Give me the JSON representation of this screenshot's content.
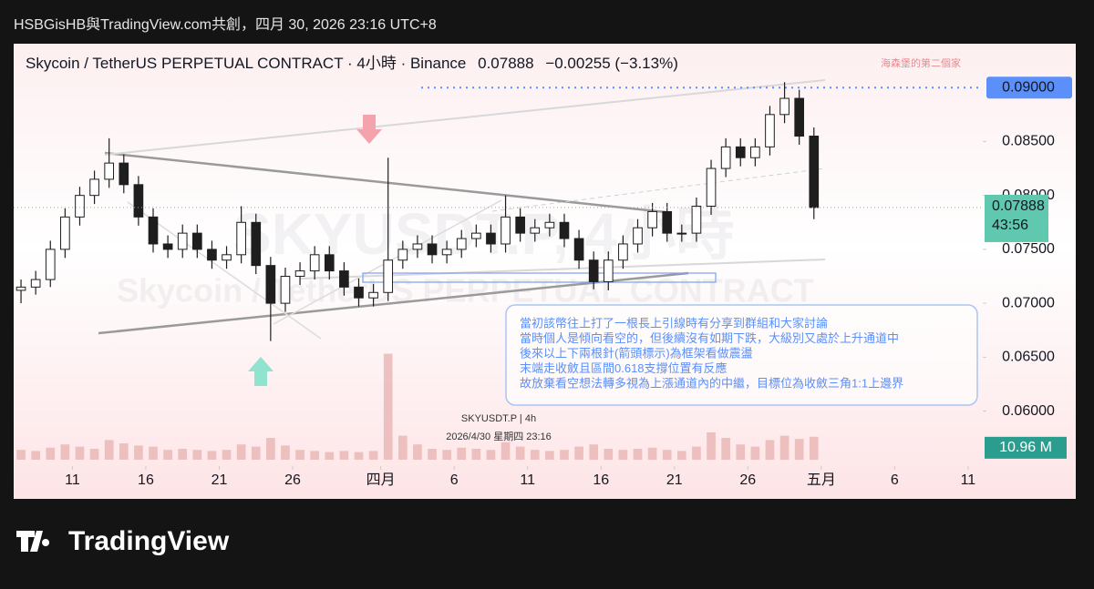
{
  "header": "HSBGisHB與TradingView.com共創，四月 30, 2026 23:16 UTC+8",
  "footer": "TradingView",
  "chart_data": {
    "type": "candlestick",
    "title": "Skycoin / TetherUS PERPETUAL CONTRACT · 4小時 · Binance",
    "last_price_text": "0.07888",
    "change_text": "−0.00255 (−3.13%)",
    "corner_note": "海森堡的第二個家",
    "watermark": [
      "SKYUSDT.P, 4小時",
      "Skycoin / TetherUS PERPETUAL CONTRACT"
    ],
    "symbol_label": "SKYUSDT.P | 4h",
    "date_label": "2026/4/30 星期四 23:16",
    "countdown": "43:56",
    "annotation": [
      "當初該幣往上打了一根長上引線時有分享到群組和大家討論",
      "當時個人是傾向看空的，但後續沒有如期下跌，大級別又處於上升通道中",
      "後來以上下兩根針(箭頭標示)為框架看做震盪",
      "末端走收斂且區間0.618支撐位置有反應",
      "故放棄看空想法轉多視為上漲通道內的中繼，目標位為收斂三角1:1上邊界"
    ],
    "up_color": "#ffffff",
    "down_color": "#1e1e1e",
    "volume_color": "#e8b4b4",
    "x": [
      "2026-03-07",
      "2026-03-08",
      "2026-03-09",
      "2026-03-10",
      "2026-03-11",
      "2026-03-12",
      "2026-03-13",
      "2026-03-14",
      "2026-03-15",
      "2026-03-16",
      "2026-03-17",
      "2026-03-18",
      "2026-03-19",
      "2026-03-20",
      "2026-03-21",
      "2026-03-22",
      "2026-03-23",
      "2026-03-24",
      "2026-03-25",
      "2026-03-26",
      "2026-03-27",
      "2026-03-28",
      "2026-03-29",
      "2026-03-30",
      "2026-03-31",
      "2026-04-01",
      "2026-04-02",
      "2026-04-03",
      "2026-04-04",
      "2026-04-05",
      "2026-04-06",
      "2026-04-07",
      "2026-04-08",
      "2026-04-09",
      "2026-04-10",
      "2026-04-11",
      "2026-04-12",
      "2026-04-13",
      "2026-04-14",
      "2026-04-15",
      "2026-04-16",
      "2026-04-17",
      "2026-04-18",
      "2026-04-19",
      "2026-04-20",
      "2026-04-21",
      "2026-04-22",
      "2026-04-23",
      "2026-04-24",
      "2026-04-25",
      "2026-04-26",
      "2026-04-27",
      "2026-04-28",
      "2026-04-29",
      "2026-04-30"
    ],
    "open": [
      0.0712,
      0.0715,
      0.0722,
      0.075,
      0.078,
      0.08,
      0.0815,
      0.083,
      0.081,
      0.078,
      0.0755,
      0.075,
      0.0765,
      0.075,
      0.074,
      0.0745,
      0.0775,
      0.0735,
      0.07,
      0.0725,
      0.073,
      0.0745,
      0.073,
      0.0715,
      0.0705,
      0.071,
      0.074,
      0.075,
      0.0755,
      0.0745,
      0.075,
      0.076,
      0.0765,
      0.0755,
      0.078,
      0.0765,
      0.077,
      0.0775,
      0.076,
      0.074,
      0.072,
      0.074,
      0.0755,
      0.077,
      0.0785,
      0.0765,
      0.0765,
      0.079,
      0.0825,
      0.0845,
      0.0835,
      0.0845,
      0.0875,
      0.089,
      0.0855
    ],
    "high": [
      0.0722,
      0.073,
      0.0758,
      0.0788,
      0.0808,
      0.0823,
      0.0853,
      0.0838,
      0.0818,
      0.0788,
      0.0763,
      0.0773,
      0.0773,
      0.0758,
      0.0753,
      0.079,
      0.0783,
      0.0743,
      0.0733,
      0.0738,
      0.0753,
      0.0753,
      0.0738,
      0.0723,
      0.0718,
      0.0835,
      0.0758,
      0.0763,
      0.0763,
      0.0758,
      0.0768,
      0.0773,
      0.0773,
      0.08,
      0.0788,
      0.0778,
      0.0783,
      0.0783,
      0.0768,
      0.0748,
      0.0748,
      0.0763,
      0.0778,
      0.0793,
      0.0793,
      0.0773,
      0.0798,
      0.0833,
      0.0853,
      0.0853,
      0.0853,
      0.0883,
      0.0905,
      0.0898,
      0.0863
    ],
    "low": [
      0.07,
      0.0708,
      0.0715,
      0.0742,
      0.0772,
      0.0792,
      0.0807,
      0.0802,
      0.0772,
      0.0747,
      0.0742,
      0.0742,
      0.0742,
      0.0732,
      0.0732,
      0.0737,
      0.0727,
      0.0665,
      0.0692,
      0.0717,
      0.0722,
      0.0722,
      0.0707,
      0.0697,
      0.0697,
      0.0702,
      0.0732,
      0.0742,
      0.0737,
      0.0737,
      0.0742,
      0.0752,
      0.0747,
      0.0747,
      0.0757,
      0.0757,
      0.0762,
      0.0752,
      0.0732,
      0.0713,
      0.0712,
      0.0732,
      0.0747,
      0.0762,
      0.0757,
      0.0757,
      0.0757,
      0.0782,
      0.0817,
      0.0827,
      0.0827,
      0.0837,
      0.0867,
      0.0847,
      0.0778
    ],
    "close": [
      0.0715,
      0.0722,
      0.075,
      0.078,
      0.08,
      0.0815,
      0.083,
      0.081,
      0.078,
      0.0755,
      0.075,
      0.0765,
      0.075,
      0.074,
      0.0745,
      0.0775,
      0.0735,
      0.07,
      0.0725,
      0.073,
      0.0745,
      0.073,
      0.0715,
      0.0705,
      0.071,
      0.074,
      0.075,
      0.0755,
      0.0745,
      0.075,
      0.076,
      0.0765,
      0.0755,
      0.078,
      0.0765,
      0.077,
      0.0775,
      0.076,
      0.074,
      0.072,
      0.074,
      0.0755,
      0.077,
      0.0785,
      0.0765,
      0.0765,
      0.079,
      0.0825,
      0.0845,
      0.0835,
      0.0845,
      0.0875,
      0.089,
      0.0855,
      0.07888
    ],
    "volume": [
      9,
      8,
      11,
      14,
      12,
      10,
      18,
      15,
      13,
      12,
      9,
      10,
      9,
      8,
      9,
      14,
      12,
      20,
      13,
      9,
      8,
      7,
      8,
      7,
      8,
      97,
      22,
      14,
      10,
      9,
      11,
      10,
      9,
      16,
      12,
      9,
      8,
      9,
      12,
      14,
      10,
      9,
      10,
      11,
      9,
      8,
      12,
      25,
      20,
      14,
      12,
      18,
      22,
      19,
      21
    ],
    "volume_ylim": [
      0,
      100
    ],
    "current_volume": {
      "value": 10.96,
      "label": "10.96 M"
    },
    "xlim": [
      "2026-03-07",
      "2026-05-12"
    ],
    "xticks": [
      {
        "value": "2026-03-11",
        "label": "11"
      },
      {
        "value": "2026-03-16",
        "label": "16"
      },
      {
        "value": "2026-03-21",
        "label": "21"
      },
      {
        "value": "2026-03-26",
        "label": "26"
      },
      {
        "value": "2026-04-01",
        "label": "四月"
      },
      {
        "value": "2026-04-06",
        "label": "6"
      },
      {
        "value": "2026-04-11",
        "label": "11"
      },
      {
        "value": "2026-04-16",
        "label": "16"
      },
      {
        "value": "2026-04-21",
        "label": "21"
      },
      {
        "value": "2026-04-26",
        "label": "26"
      },
      {
        "value": "2026-05-01",
        "label": "五月"
      },
      {
        "value": "2026-05-06",
        "label": "6"
      },
      {
        "value": "2026-05-11",
        "label": "11"
      }
    ],
    "ylim": [
      0.0549,
      0.0939
    ],
    "yticks": [
      {
        "value": 0.085,
        "label": "0.08500"
      },
      {
        "value": 0.08,
        "label": "0.08000"
      },
      {
        "value": 0.075,
        "label": "0.07500"
      },
      {
        "value": 0.07,
        "label": "0.07000"
      },
      {
        "value": 0.065,
        "label": "0.06500"
      },
      {
        "value": 0.06,
        "label": "0.06000"
      }
    ],
    "horizontal_line": {
      "value": 0.09,
      "label": "0.09000",
      "color": "#5b8ff9"
    },
    "last_price_color": "#5fc8ae"
  }
}
